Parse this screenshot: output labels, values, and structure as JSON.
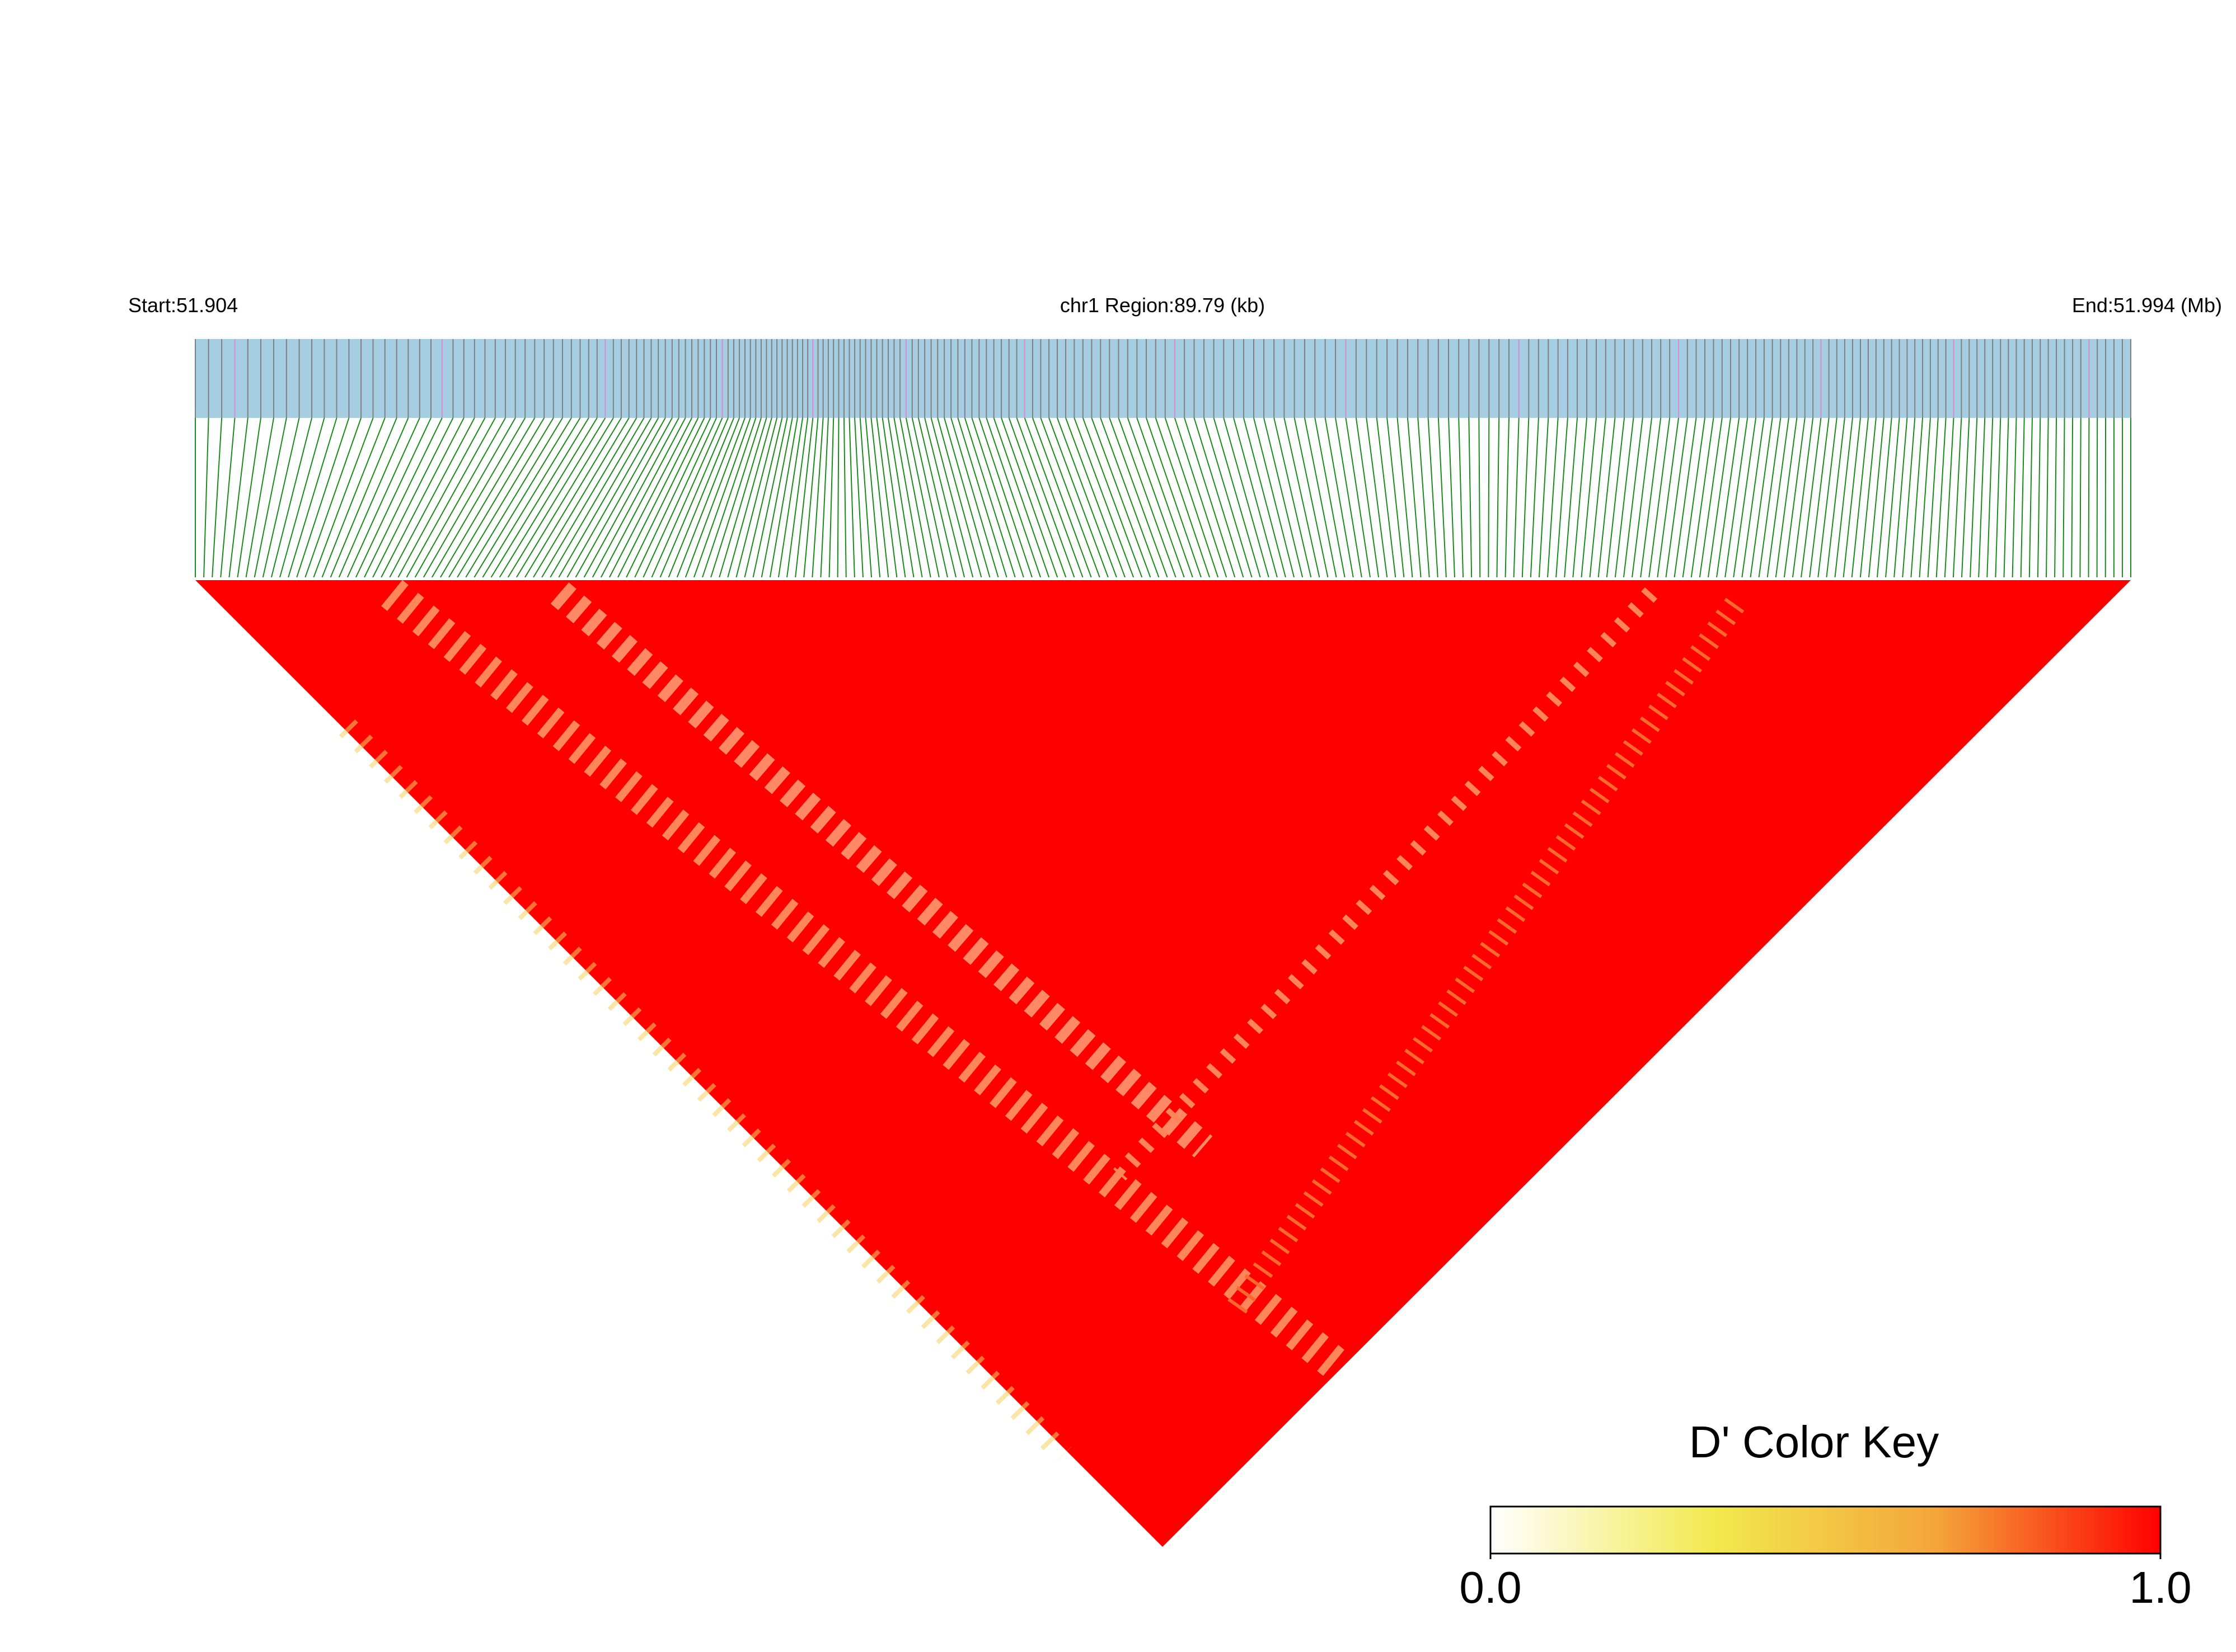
{
  "chart_data": {
    "type": "ld-heatmap",
    "start_label": "Start:51.904",
    "region_label": "chr1 Region:89.79 (kb)",
    "end_label": "End:51.994 (Mb)",
    "color_key": {
      "title": "D' Color Key",
      "clim": [
        0,
        1
      ],
      "ticks": [
        {
          "value": 0,
          "label": "0.0"
        },
        {
          "value": 1,
          "label": "1.0"
        }
      ],
      "colors": [
        "#ffffff",
        "#f2e94e",
        "#f4a53a",
        "#ff0000"
      ]
    },
    "track_color": "#a6cee3",
    "connector_color": "#1a8a1a",
    "heatmap_color": "#ff0000"
  }
}
